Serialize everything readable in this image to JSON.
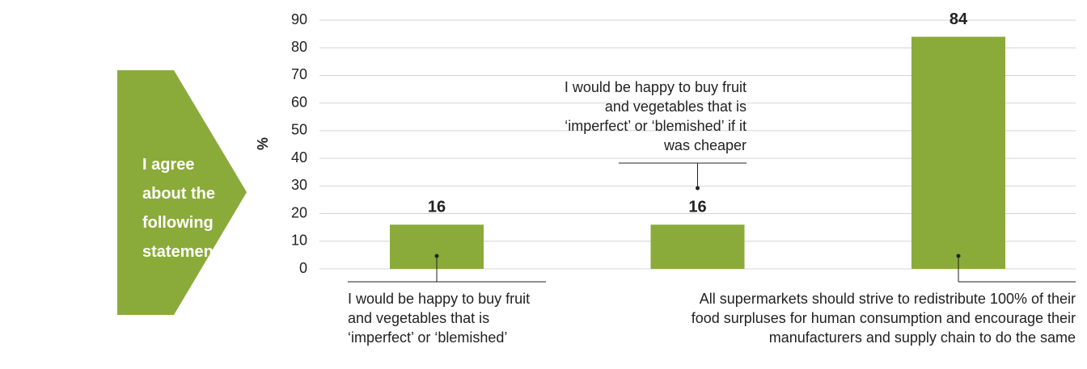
{
  "side_label": "I agree about the following statements:",
  "chart_data": {
    "type": "bar",
    "ylabel": "%",
    "categories": [
      "I would be happy to buy fruit and vegetables that is ‘imperfect’ or ‘blemished’",
      "I would be happy to buy fruit and vegetables that is ‘imperfect’ or ‘blemished’ if it was cheaper",
      "All supermarkets should strive to redistribute 100% of their food surpluses for human consumption and encourage their manufacturers and supply chain to do the same"
    ],
    "values": [
      16,
      16,
      84
    ],
    "color": "#8aab3a",
    "ylim": [
      0,
      90
    ],
    "yticks": [
      0,
      10,
      20,
      30,
      40,
      50,
      60,
      70,
      80,
      90
    ],
    "grid": true
  }
}
